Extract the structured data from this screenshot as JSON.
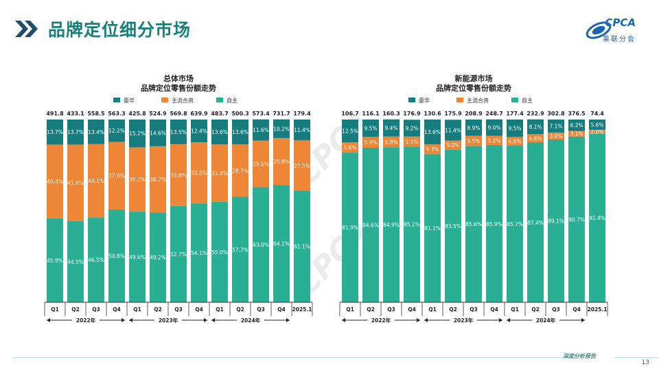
{
  "header": {
    "title": "品牌定位细分市场"
  },
  "logo": {
    "name": "CPCA",
    "sub": "乘联分会"
  },
  "footer": {
    "text": "深度分析报告",
    "page": "13"
  },
  "colors": {
    "luxury": "#167c7d",
    "mainstream": "#ee8637",
    "domestic": "#2aae94",
    "bg_title": "#17807a"
  },
  "periods": [
    "Q1",
    "Q2",
    "Q3",
    "Q4",
    "Q1",
    "Q2",
    "Q3",
    "Q4",
    "Q1",
    "Q2",
    "Q3",
    "Q4",
    "2025.1"
  ],
  "year_groups": [
    {
      "label": "2022年",
      "start": 0,
      "end": 3
    },
    {
      "label": "2023年",
      "start": 4,
      "end": 7
    },
    {
      "label": "2024年",
      "start": 8,
      "end": 11
    }
  ],
  "chart_data": [
    {
      "type": "bar",
      "stacked": true,
      "title": "总体市场",
      "subtitle": "品牌定位零售份额走势",
      "legend_position": "top",
      "categories": [
        "Q1",
        "Q2",
        "Q3",
        "Q4",
        "Q1",
        "Q2",
        "Q3",
        "Q4",
        "Q1",
        "Q2",
        "Q3",
        "Q4",
        "2025.1"
      ],
      "totals": [
        "491.8",
        "433.1",
        "558.5",
        "563.3",
        "425.8",
        "524.9",
        "569.8",
        "639.9",
        "483.7",
        "500.3",
        "573.4",
        "731.7",
        "179.4"
      ],
      "series": [
        {
          "name": "自主",
          "key": "domestic",
          "values": [
            "45.9%",
            "44.5%",
            "46.5%",
            "50.8%",
            "49.6%",
            "49.2%",
            "52.7%",
            "54.1%",
            "55.0%",
            "57.7%",
            "63.0%",
            "64.1%",
            "61.1%"
          ]
        },
        {
          "name": "主流合资",
          "key": "mainstream",
          "values": [
            "40.4%",
            "41.8%",
            "40.1%",
            "37.0%",
            "35.2%",
            "36.2%",
            "33.8%",
            "33.5%",
            "31.4%",
            "28.7%",
            "25.5%",
            "25.8%",
            "27.5%"
          ]
        },
        {
          "name": "豪华",
          "key": "luxury",
          "values": [
            "13.7%",
            "13.7%",
            "13.4%",
            "12.2%",
            "15.2%",
            "14.6%",
            "13.5%",
            "12.4%",
            "13.6%",
            "13.6%",
            "11.6%",
            "10.2%",
            "11.4%"
          ]
        }
      ],
      "ylim": [
        0,
        100
      ]
    },
    {
      "type": "bar",
      "stacked": true,
      "title": "新能源市场",
      "subtitle": "品牌定位零售份额走势",
      "legend_position": "top",
      "categories": [
        "Q1",
        "Q2",
        "Q3",
        "Q4",
        "Q1",
        "Q2",
        "Q3",
        "Q4",
        "Q1",
        "Q2",
        "Q3",
        "Q4",
        "2025.1"
      ],
      "totals": [
        "106.7",
        "116.1",
        "160.3",
        "176.9",
        "130.6",
        "175.9",
        "208.9",
        "248.7",
        "177.4",
        "232.9",
        "302.8",
        "376.5",
        "74.4"
      ],
      "series": [
        {
          "name": "自主",
          "key": "domestic",
          "values": [
            "81.9%",
            "84.6%",
            "84.9%",
            "85.2%",
            "81.1%",
            "83.5%",
            "85.6%",
            "85.9%",
            "85.7%",
            "87.4%",
            "89.1%",
            "90.7%",
            "92.4%"
          ]
        },
        {
          "name": "主流合资",
          "key": "mainstream",
          "values": [
            "5.6%",
            "5.9%",
            "5.8%",
            "5.5%",
            "5.3%",
            "5.0%",
            "5.5%",
            "5.2%",
            "4.8%",
            "4.6%",
            "3.8%",
            "3.1%",
            "2.0%"
          ]
        },
        {
          "name": "豪华",
          "key": "luxury",
          "values": [
            "12.5%",
            "9.5%",
            "9.4%",
            "9.2%",
            "13.6%",
            "11.4%",
            "8.9%",
            "9.0%",
            "9.5%",
            "8.1%",
            "7.1%",
            "6.2%",
            "5.6%"
          ]
        }
      ],
      "ylim": [
        0,
        100
      ]
    }
  ]
}
